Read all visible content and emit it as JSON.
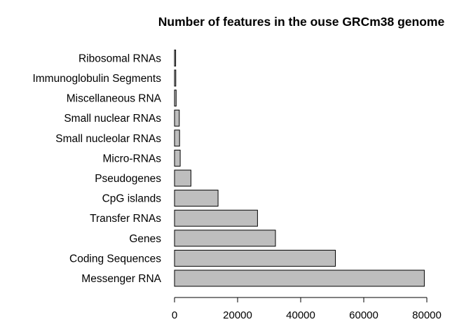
{
  "chart_data": {
    "type": "bar",
    "orientation": "horizontal",
    "title": "Number of features in the ouse GRCm38 genome",
    "xlabel": "",
    "ylabel": "",
    "categories": [
      "Messenger RNA",
      "Coding Sequences",
      "Genes",
      "Transfer RNAs",
      "CpG islands",
      "Pseudogenes",
      "Micro-RNAs",
      "Small nucleolar RNAs",
      "Small nuclear RNAs",
      "Miscellaneous RNA",
      "Immunoglobulin Segments",
      "Ribosomal RNAs"
    ],
    "values": [
      79200,
      51000,
      32000,
      26300,
      13800,
      5200,
      1800,
      1600,
      1500,
      500,
      400,
      350
    ],
    "xlim": [
      0,
      80000
    ],
    "xticks": [
      "0",
      "20000",
      "40000",
      "60000",
      "80000"
    ],
    "grid": false,
    "bar_color": "#bebebe",
    "edge_color": "#000000"
  }
}
